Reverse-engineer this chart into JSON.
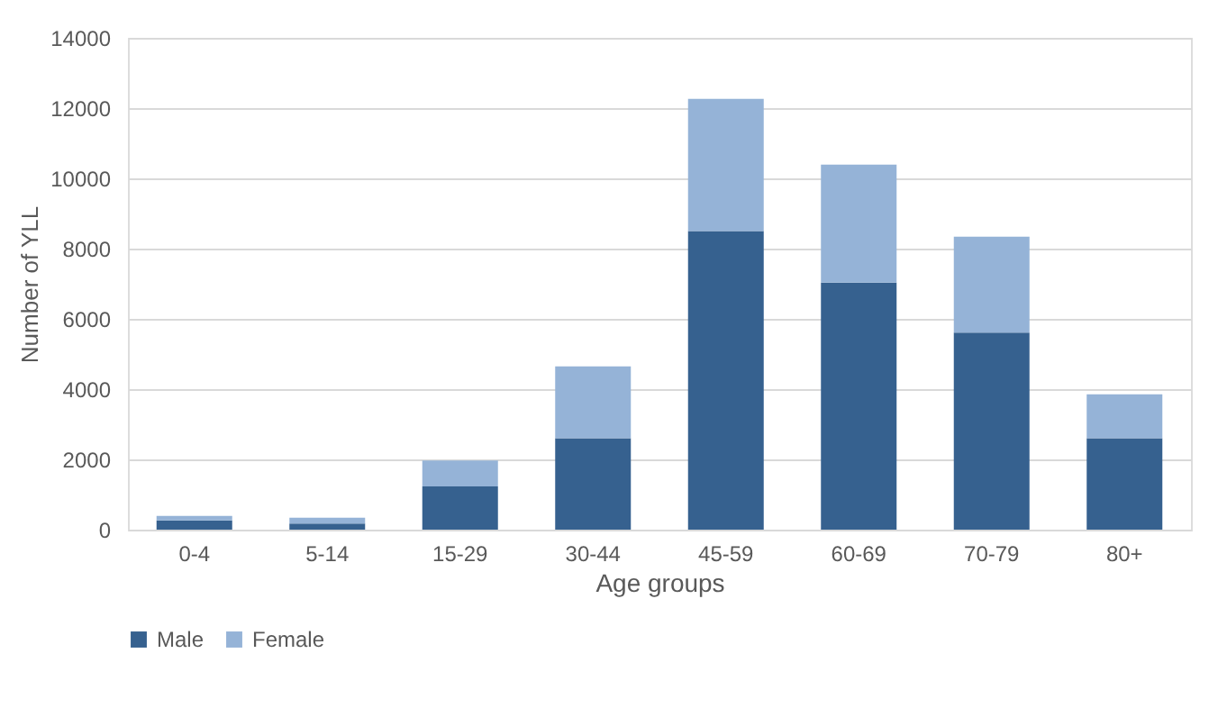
{
  "chart_data": {
    "type": "bar",
    "stacked": true,
    "xlabel": "Age groups",
    "ylabel": "Number of YLL",
    "categories": [
      "0-4",
      "5-14",
      "15-29",
      "30-44",
      "45-59",
      "60-69",
      "70-79",
      "80+"
    ],
    "series": [
      {
        "name": "Male",
        "color": "#36618f",
        "values": [
          260,
          170,
          1230,
          2600,
          8500,
          7030,
          5610,
          2600
        ]
      },
      {
        "name": "Female",
        "color": "#95b3d7",
        "values": [
          130,
          170,
          740,
          2050,
          3760,
          3360,
          2730,
          1250
        ]
      }
    ],
    "ylim": [
      0,
      14000
    ],
    "yticks": [
      0,
      2000,
      4000,
      6000,
      8000,
      10000,
      12000,
      14000
    ],
    "grid": "y",
    "legend": "bottom"
  }
}
